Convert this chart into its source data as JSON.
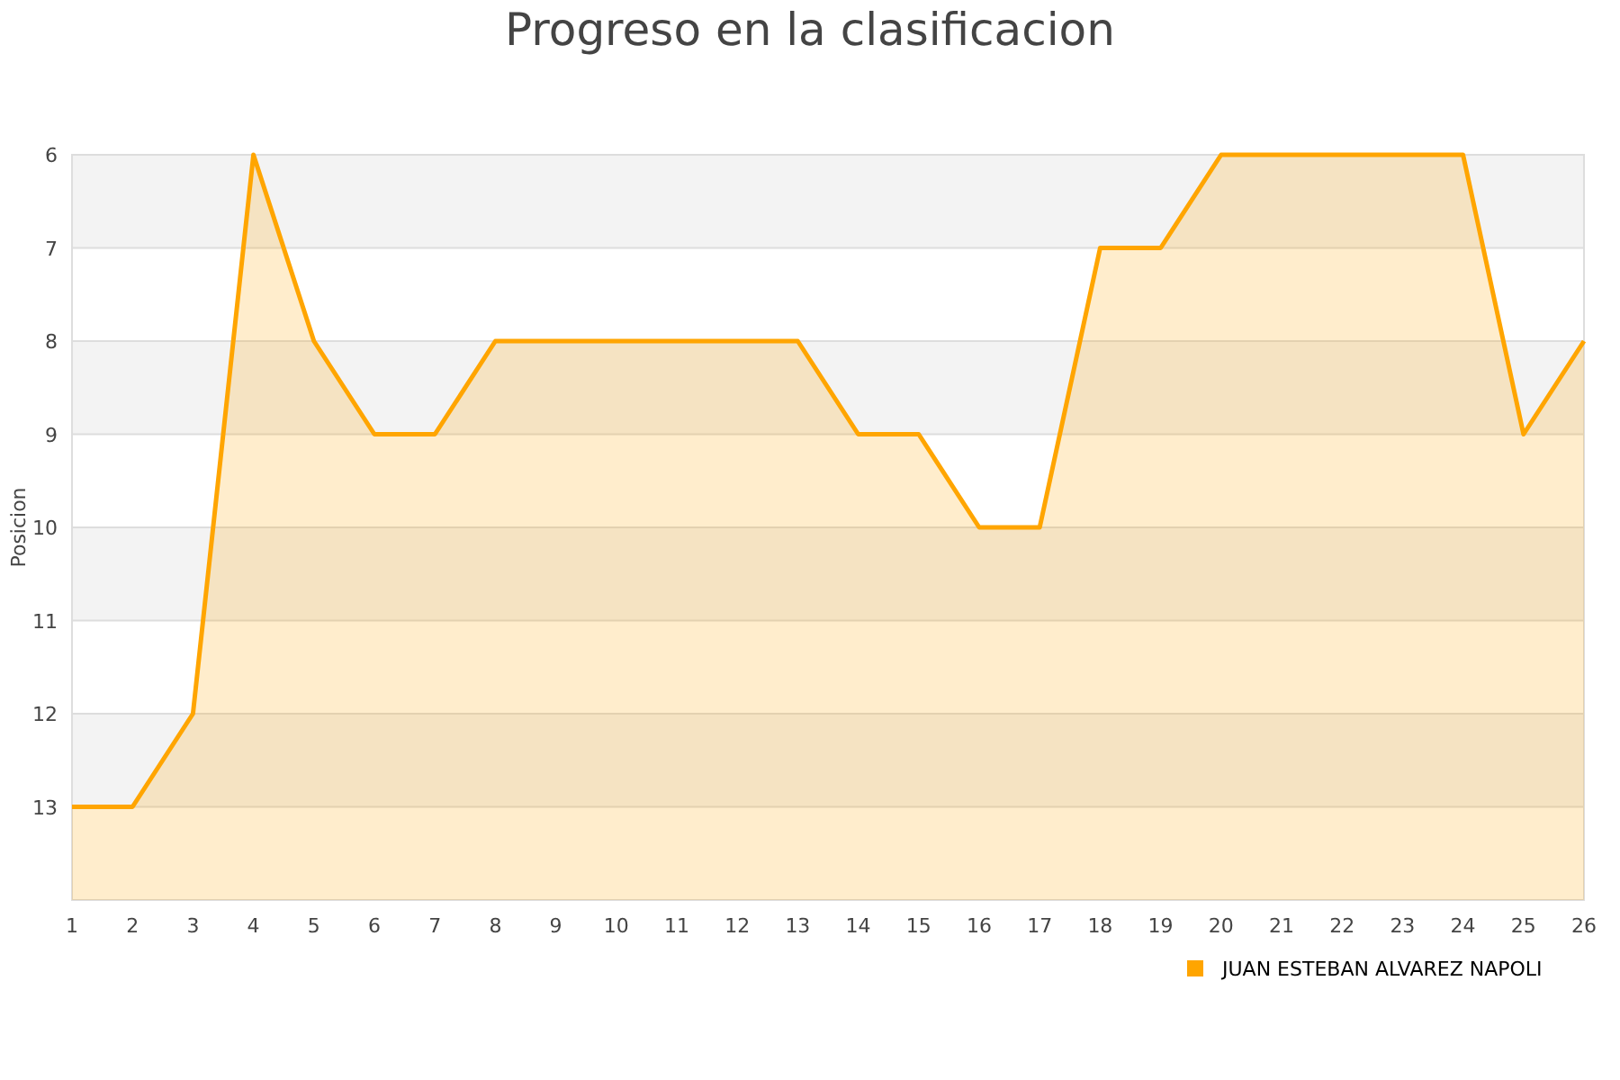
{
  "chart_data": {
    "type": "area",
    "title": "Progreso en la clasificacion",
    "ylabel": "Posicion",
    "x": [
      1,
      2,
      3,
      4,
      5,
      6,
      7,
      8,
      9,
      10,
      11,
      12,
      13,
      14,
      15,
      16,
      17,
      18,
      19,
      20,
      21,
      22,
      23,
      24,
      25,
      26
    ],
    "xlim": [
      1,
      26
    ],
    "xticks": [
      1,
      2,
      3,
      4,
      5,
      6,
      7,
      8,
      9,
      10,
      11,
      12,
      13,
      14,
      15,
      16,
      17,
      18,
      19,
      20,
      21,
      22,
      23,
      24,
      25,
      26
    ],
    "ylim": [
      14,
      6
    ],
    "yticks": [
      6,
      7,
      8,
      9,
      10,
      11,
      12,
      13
    ],
    "series": [
      {
        "name": "JUAN ESTEBAN ALVAREZ NAPOLI",
        "color": "#ffa500",
        "values": [
          13,
          13,
          12,
          6,
          8,
          9,
          9,
          8,
          8,
          8,
          8,
          8,
          8,
          9,
          9,
          10,
          10,
          7,
          7,
          6,
          6,
          6,
          6,
          6,
          9,
          8
        ]
      }
    ],
    "grid": "y",
    "legend": "bottom right",
    "marker": "none",
    "line_style": "solid"
  }
}
